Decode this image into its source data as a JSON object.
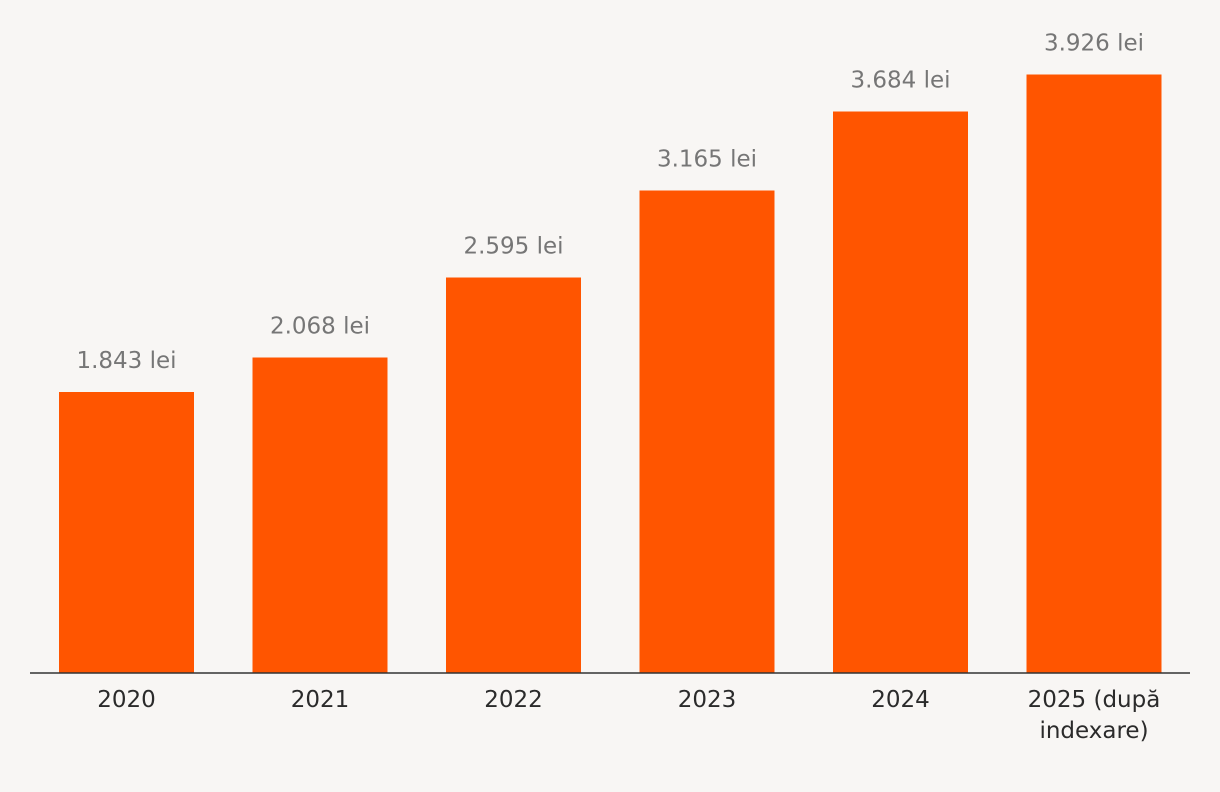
{
  "chart_data": {
    "type": "bar",
    "categories": [
      "2020",
      "2021",
      "2022",
      "2023",
      "2024",
      "2025 (după indexare)"
    ],
    "category_label_lines": [
      [
        "2020"
      ],
      [
        "2021"
      ],
      [
        "2022"
      ],
      [
        "2023"
      ],
      [
        "2024"
      ],
      [
        "2025 (după",
        "indexare)"
      ]
    ],
    "values": [
      1843,
      2068,
      2595,
      3165,
      3684,
      3926
    ],
    "data_labels": [
      "1.843 lei",
      "2.068 lei",
      "2.595 lei",
      "3.165 lei",
      "3.684 lei",
      "3.926 lei"
    ],
    "ylim": [
      0,
      4400
    ],
    "grid": false,
    "legend": "none"
  },
  "colors": {
    "background": "#f8f6f4",
    "bar": "#ff5500",
    "axis": "#333333",
    "value_text": "#767676",
    "category_text": "#2b2b2b"
  }
}
